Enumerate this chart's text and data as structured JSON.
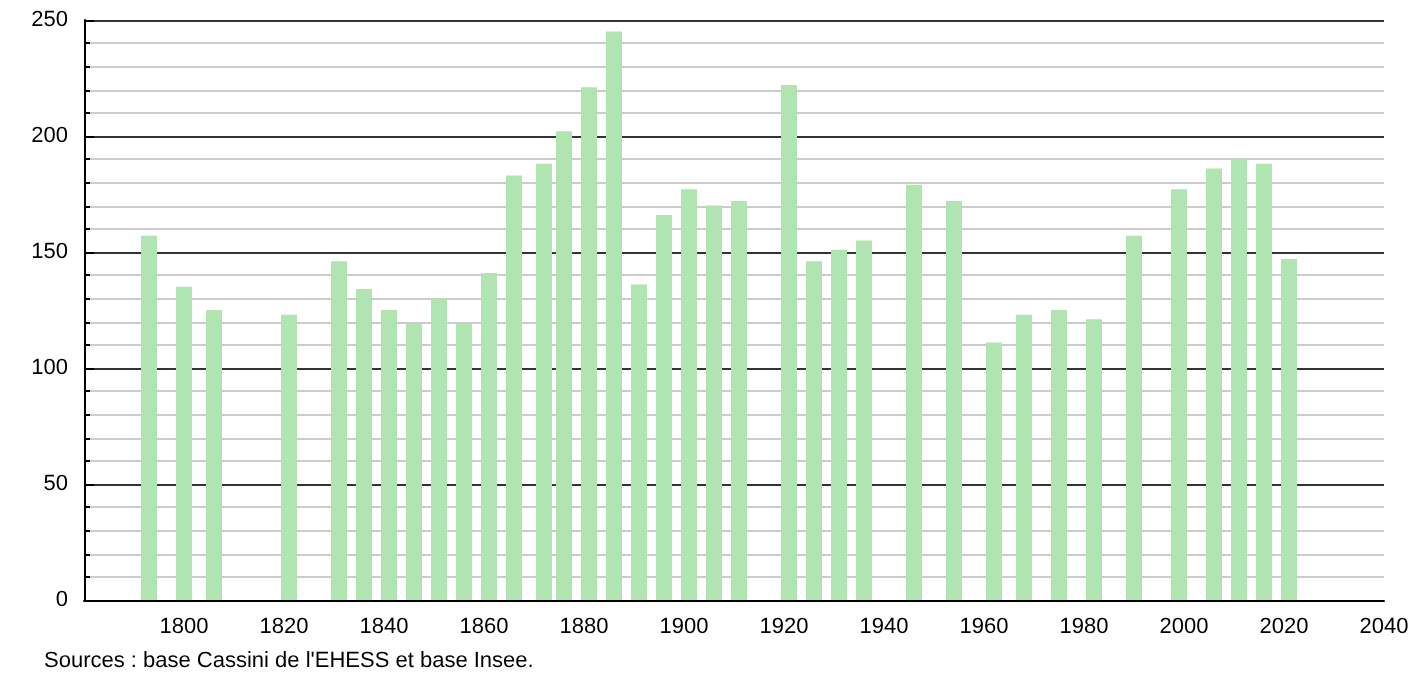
{
  "chart_data": {
    "type": "bar",
    "x": [
      1793,
      1800,
      1806,
      1821,
      1831,
      1836,
      1841,
      1846,
      1851,
      1856,
      1861,
      1866,
      1872,
      1876,
      1881,
      1886,
      1891,
      1896,
      1901,
      1906,
      1911,
      1921,
      1926,
      1931,
      1936,
      1946,
      1954,
      1962,
      1968,
      1975,
      1982,
      1990,
      1999,
      2006,
      2011,
      2016,
      2021
    ],
    "values": [
      157,
      135,
      125,
      123,
      146,
      134,
      125,
      119,
      130,
      119,
      141,
      183,
      188,
      202,
      221,
      245,
      136,
      166,
      177,
      170,
      172,
      222,
      146,
      151,
      155,
      179,
      172,
      111,
      123,
      125,
      121,
      157,
      177,
      186,
      190,
      188,
      147
    ],
    "color": "#b0e4b0",
    "xlim": [
      1780,
      2040
    ],
    "xticks": [
      1800,
      1820,
      1840,
      1860,
      1880,
      1900,
      1920,
      1940,
      1960,
      1980,
      2000,
      2020,
      2040
    ],
    "ylim": [
      0,
      250
    ],
    "yticks": [
      0,
      50,
      100,
      150,
      200,
      250
    ],
    "grid": "y",
    "annotations": [
      "Sources : base Cassini de l'EHESS et base Insee."
    ]
  }
}
